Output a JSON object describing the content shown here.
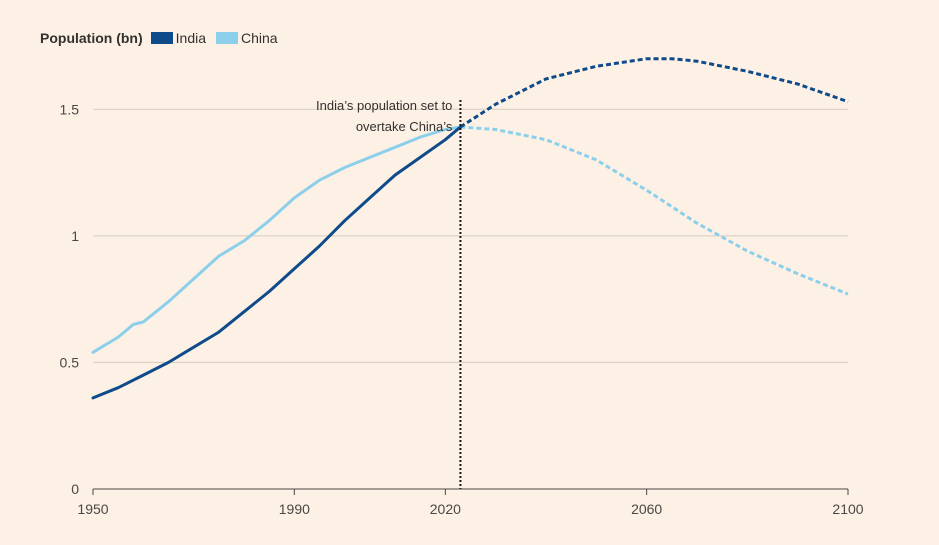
{
  "chart_data": {
    "type": "line",
    "legend_title": "Population (bn)",
    "xlim": [
      1950,
      2100
    ],
    "ylim": [
      0,
      1.75
    ],
    "x_ticks": [
      1950,
      1990,
      2020,
      2060,
      2100
    ],
    "y_ticks": [
      0,
      0.5,
      1,
      1.5
    ],
    "y_tick_labels": [
      "0",
      "0.5",
      "1",
      "1.5"
    ],
    "grid": "horizontal",
    "legend_position": "top-left",
    "projection_start": 2023,
    "annotation": {
      "x": 2023,
      "lines": [
        "India’s population set to",
        "overtake China’s"
      ]
    },
    "series": [
      {
        "name": "India",
        "color": "#0f4a8a",
        "x": [
          1950,
          1955,
          1960,
          1965,
          1970,
          1975,
          1980,
          1985,
          1990,
          1995,
          2000,
          2005,
          2010,
          2015,
          2020,
          2023,
          2030,
          2040,
          2050,
          2060,
          2065,
          2070,
          2080,
          2090,
          2100
        ],
        "values": [
          0.36,
          0.4,
          0.45,
          0.5,
          0.56,
          0.62,
          0.7,
          0.78,
          0.87,
          0.96,
          1.06,
          1.15,
          1.24,
          1.31,
          1.38,
          1.43,
          1.52,
          1.62,
          1.67,
          1.7,
          1.7,
          1.69,
          1.65,
          1.6,
          1.53
        ]
      },
      {
        "name": "China",
        "color": "#8ccfeb",
        "x": [
          1950,
          1955,
          1958,
          1960,
          1965,
          1970,
          1975,
          1980,
          1985,
          1990,
          1995,
          2000,
          2005,
          2010,
          2015,
          2020,
          2023,
          2030,
          2040,
          2050,
          2060,
          2070,
          2080,
          2090,
          2100
        ],
        "values": [
          0.54,
          0.6,
          0.65,
          0.66,
          0.74,
          0.83,
          0.92,
          0.98,
          1.06,
          1.15,
          1.22,
          1.27,
          1.31,
          1.35,
          1.39,
          1.42,
          1.43,
          1.42,
          1.38,
          1.3,
          1.18,
          1.05,
          0.94,
          0.85,
          0.77
        ]
      }
    ]
  }
}
